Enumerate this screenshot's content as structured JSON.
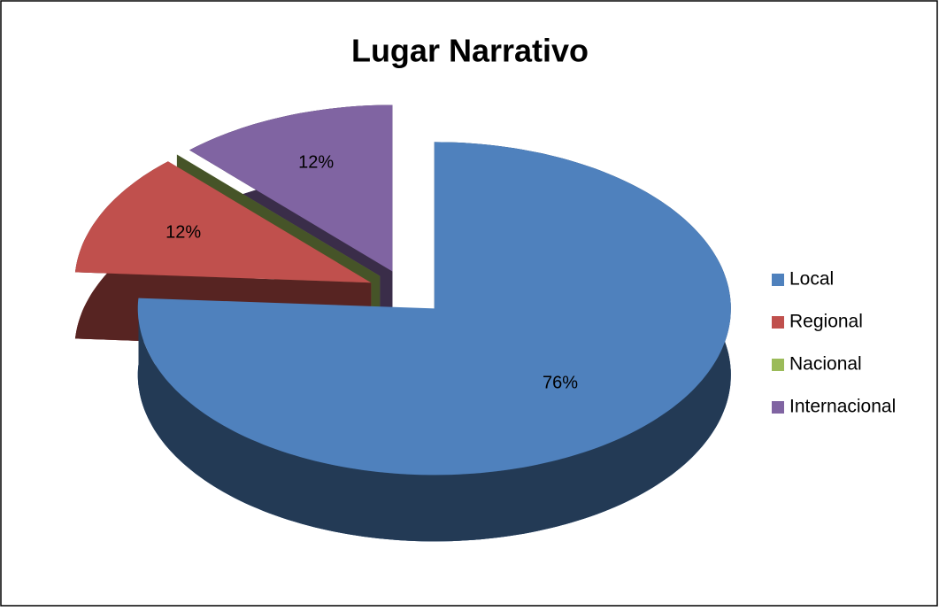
{
  "chart_data": {
    "type": "pie",
    "title": "Lugar Narrativo",
    "categories": [
      "Local",
      "Regional",
      "Nacional",
      "Internacional"
    ],
    "values": [
      76,
      12,
      0,
      12
    ],
    "value_labels": [
      "76%",
      "12%",
      null,
      "12%"
    ],
    "colors": [
      "#4f81bd",
      "#c0504d",
      "#9bbb59",
      "#8064a2"
    ],
    "legend": "right"
  }
}
